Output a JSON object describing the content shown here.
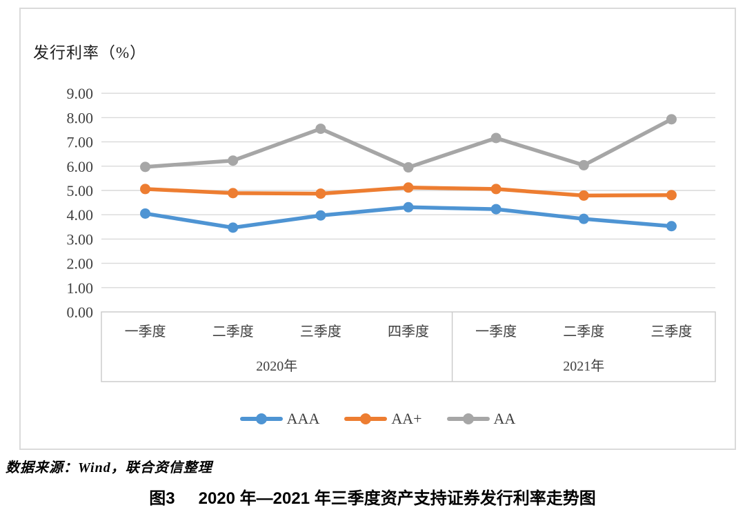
{
  "chart_data": {
    "type": "line",
    "title": "发行利率（%）",
    "categories": [
      "一季度",
      "二季度",
      "三季度",
      "四季度",
      "一季度",
      "二季度",
      "三季度"
    ],
    "year_groups": [
      {
        "label": "2020年",
        "span": 4
      },
      {
        "label": "2021年",
        "span": 3
      }
    ],
    "y_ticks": [
      "0.00",
      "1.00",
      "2.00",
      "3.00",
      "4.00",
      "5.00",
      "6.00",
      "7.00",
      "8.00",
      "9.00"
    ],
    "ylim": [
      0,
      9
    ],
    "grid": true,
    "legend_position": "bottom",
    "series": [
      {
        "name": "AAA",
        "color": "#4E94D3",
        "values": [
          4.05,
          3.47,
          3.97,
          4.31,
          4.23,
          3.83,
          3.53
        ]
      },
      {
        "name": "AA+",
        "color": "#ED7D31",
        "values": [
          5.06,
          4.89,
          4.87,
          5.12,
          5.06,
          4.79,
          4.81
        ]
      },
      {
        "name": "AA",
        "color": "#A6A6A6",
        "values": [
          5.97,
          6.23,
          7.54,
          5.95,
          7.16,
          6.04,
          7.93
        ]
      }
    ],
    "colors": {
      "grid": "#d9d9d9",
      "axis_box": "#c9c9c9",
      "tick_text": "#3f3f3f"
    }
  },
  "source": {
    "text": "数据来源：Wind，联合资信整理"
  },
  "caption": {
    "label": "图3",
    "text": "2020 年—2021 年三季度资产支持证券发行利率走势图"
  }
}
